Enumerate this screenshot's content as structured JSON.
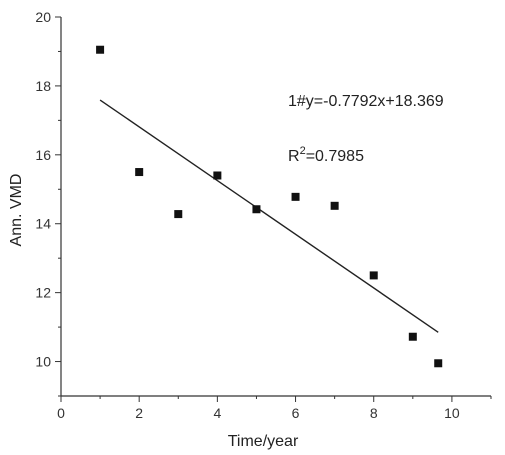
{
  "chart_data": {
    "type": "scatter",
    "xlabel": "Time/year",
    "ylabel": "Ann. VMD",
    "xlim": [
      0,
      11
    ],
    "ylim": [
      9,
      20
    ],
    "xticks": [
      0,
      2,
      4,
      6,
      8,
      10
    ],
    "yticks": [
      10,
      12,
      14,
      16,
      18,
      20
    ],
    "series": [
      {
        "x": [
          1,
          2,
          3,
          4,
          5,
          6,
          7,
          8,
          9,
          9.65
        ],
        "y": [
          19.05,
          15.5,
          14.28,
          15.4,
          14.42,
          14.78,
          14.52,
          12.5,
          10.72,
          9.95
        ]
      }
    ],
    "fit": {
      "slope": -0.7792,
      "intercept": 18.369,
      "x_range": [
        1,
        9.65
      ]
    },
    "annotations": {
      "equation": "1#y=-0.7792x+18.369",
      "r2_prefix": "R",
      "r2_sup": "2",
      "r2_suffix": "=0.7985"
    },
    "colors": {
      "marker": "#111111",
      "fit_line": "#222222",
      "axis": "#333333"
    }
  }
}
